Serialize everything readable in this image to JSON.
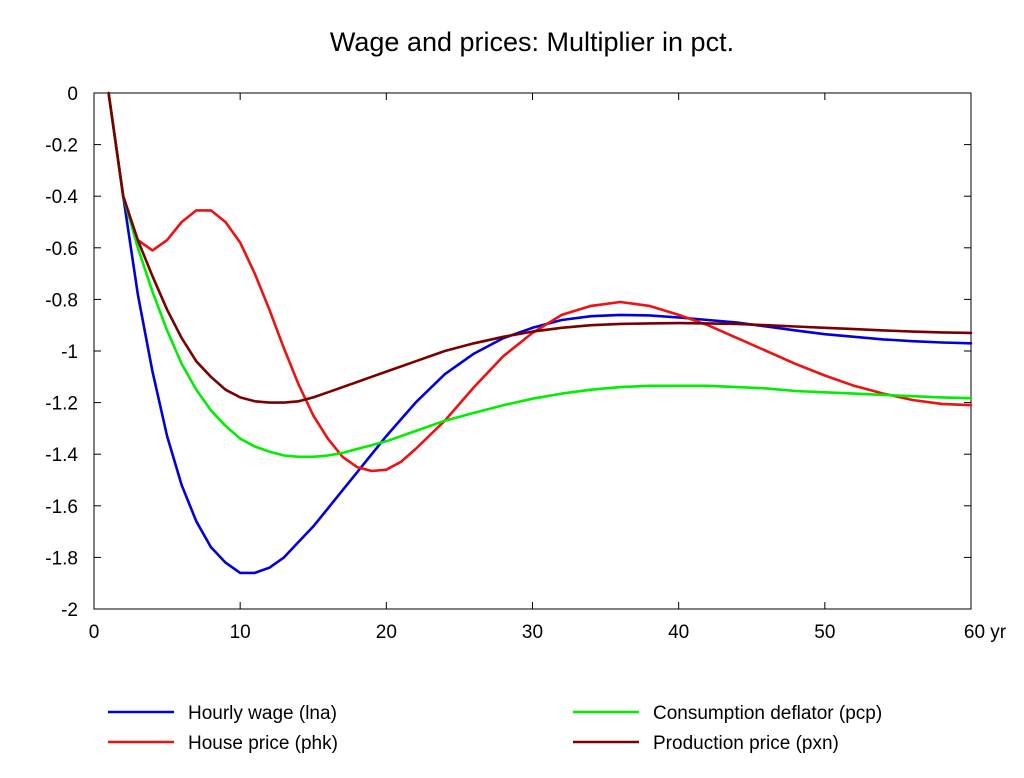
{
  "chart_data": {
    "type": "line",
    "title": "Wage and prices: Multiplier in pct.",
    "xlabel": "",
    "ylabel": "",
    "x_unit": "yr",
    "xlim": [
      0,
      60
    ],
    "ylim": [
      -2,
      0
    ],
    "x_ticks": [
      0,
      10,
      20,
      30,
      40,
      50,
      60
    ],
    "x_tick_labels": [
      "0",
      "10",
      "20",
      "30",
      "40",
      "50",
      "60 yr"
    ],
    "y_ticks": [
      0,
      -0.2,
      -0.4,
      -0.6,
      -0.8,
      -1,
      -1.2,
      -1.4,
      -1.6,
      -1.8,
      -2
    ],
    "y_tick_labels": [
      "0",
      "-0.2",
      "-0.4",
      "-0.6",
      "-0.8",
      "-1",
      "-1.2",
      "-1.4",
      "-1.6",
      "-1.8",
      "-2"
    ],
    "grid": false,
    "legend_position": "bottom",
    "series": [
      {
        "name": "Hourly wage (lna)",
        "color": "#0000dd",
        "x": [
          1,
          2,
          3,
          4,
          5,
          6,
          7,
          8,
          9,
          10,
          11,
          12,
          13,
          14,
          15,
          16,
          17,
          18,
          19,
          20,
          22,
          24,
          26,
          28,
          30,
          32,
          34,
          36,
          38,
          40,
          42,
          44,
          46,
          48,
          50,
          52,
          54,
          56,
          58,
          60
        ],
        "y": [
          0,
          -0.4,
          -0.78,
          -1.08,
          -1.33,
          -1.52,
          -1.66,
          -1.76,
          -1.82,
          -1.86,
          -1.86,
          -1.84,
          -1.8,
          -1.74,
          -1.68,
          -1.61,
          -1.54,
          -1.47,
          -1.4,
          -1.33,
          -1.2,
          -1.09,
          -1.01,
          -0.95,
          -0.91,
          -0.88,
          -0.865,
          -0.86,
          -0.862,
          -0.87,
          -0.88,
          -0.89,
          -0.905,
          -0.92,
          -0.935,
          -0.945,
          -0.955,
          -0.962,
          -0.967,
          -0.97
        ]
      },
      {
        "name": "House price (phk)",
        "color": "#ee1111",
        "x": [
          1,
          2,
          3,
          4,
          5,
          6,
          7,
          8,
          9,
          10,
          11,
          12,
          13,
          14,
          15,
          16,
          17,
          18,
          19,
          20,
          21,
          22,
          24,
          26,
          28,
          30,
          32,
          34,
          36,
          38,
          40,
          42,
          44,
          46,
          48,
          50,
          52,
          54,
          56,
          58,
          60
        ],
        "y": [
          0,
          -0.4,
          -0.57,
          -0.61,
          -0.57,
          -0.5,
          -0.455,
          -0.455,
          -0.5,
          -0.58,
          -0.7,
          -0.84,
          -0.99,
          -1.13,
          -1.25,
          -1.34,
          -1.41,
          -1.45,
          -1.465,
          -1.46,
          -1.43,
          -1.38,
          -1.27,
          -1.14,
          -1.02,
          -0.93,
          -0.86,
          -0.825,
          -0.81,
          -0.825,
          -0.86,
          -0.9,
          -0.95,
          -1.0,
          -1.05,
          -1.095,
          -1.135,
          -1.165,
          -1.19,
          -1.205,
          -1.21
        ]
      },
      {
        "name": "Consumption deflator (pcp)",
        "color": "#00ee00",
        "x": [
          1,
          2,
          3,
          4,
          5,
          6,
          7,
          8,
          9,
          10,
          11,
          12,
          13,
          14,
          15,
          16,
          17,
          18,
          20,
          22,
          24,
          26,
          28,
          30,
          32,
          34,
          36,
          38,
          40,
          42,
          44,
          46,
          48,
          50,
          52,
          54,
          56,
          58,
          60
        ],
        "y": [
          0,
          -0.4,
          -0.6,
          -0.77,
          -0.92,
          -1.05,
          -1.15,
          -1.23,
          -1.29,
          -1.34,
          -1.37,
          -1.39,
          -1.405,
          -1.41,
          -1.41,
          -1.405,
          -1.395,
          -1.38,
          -1.35,
          -1.31,
          -1.27,
          -1.24,
          -1.21,
          -1.185,
          -1.165,
          -1.15,
          -1.14,
          -1.135,
          -1.135,
          -1.135,
          -1.14,
          -1.145,
          -1.155,
          -1.16,
          -1.165,
          -1.17,
          -1.175,
          -1.18,
          -1.183
        ]
      },
      {
        "name": "Production price (pxn)",
        "color": "#7a0000",
        "x": [
          1,
          2,
          3,
          4,
          5,
          6,
          7,
          8,
          9,
          10,
          11,
          12,
          13,
          14,
          15,
          16,
          18,
          20,
          22,
          24,
          26,
          28,
          30,
          32,
          34,
          36,
          38,
          40,
          42,
          44,
          46,
          48,
          50,
          52,
          54,
          56,
          58,
          60
        ],
        "y": [
          0,
          -0.4,
          -0.57,
          -0.71,
          -0.84,
          -0.95,
          -1.04,
          -1.1,
          -1.15,
          -1.18,
          -1.195,
          -1.2,
          -1.2,
          -1.195,
          -1.18,
          -1.16,
          -1.12,
          -1.08,
          -1.04,
          -1.0,
          -0.97,
          -0.945,
          -0.925,
          -0.91,
          -0.9,
          -0.895,
          -0.893,
          -0.892,
          -0.893,
          -0.895,
          -0.9,
          -0.905,
          -0.91,
          -0.915,
          -0.92,
          -0.925,
          -0.928,
          -0.93
        ]
      }
    ]
  }
}
